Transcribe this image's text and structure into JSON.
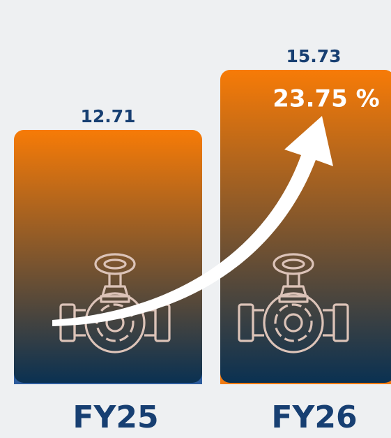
{
  "chart_data": {
    "type": "bar",
    "categories": [
      "FY25",
      "FY26"
    ],
    "values": [
      12.71,
      15.73
    ],
    "gradient": [
      "#f77b07",
      "#0a3152"
    ],
    "base_colors": [
      "#2d5c9c",
      "#f07a12"
    ],
    "label_color": "#173f72",
    "annotation": "23.75 %"
  }
}
